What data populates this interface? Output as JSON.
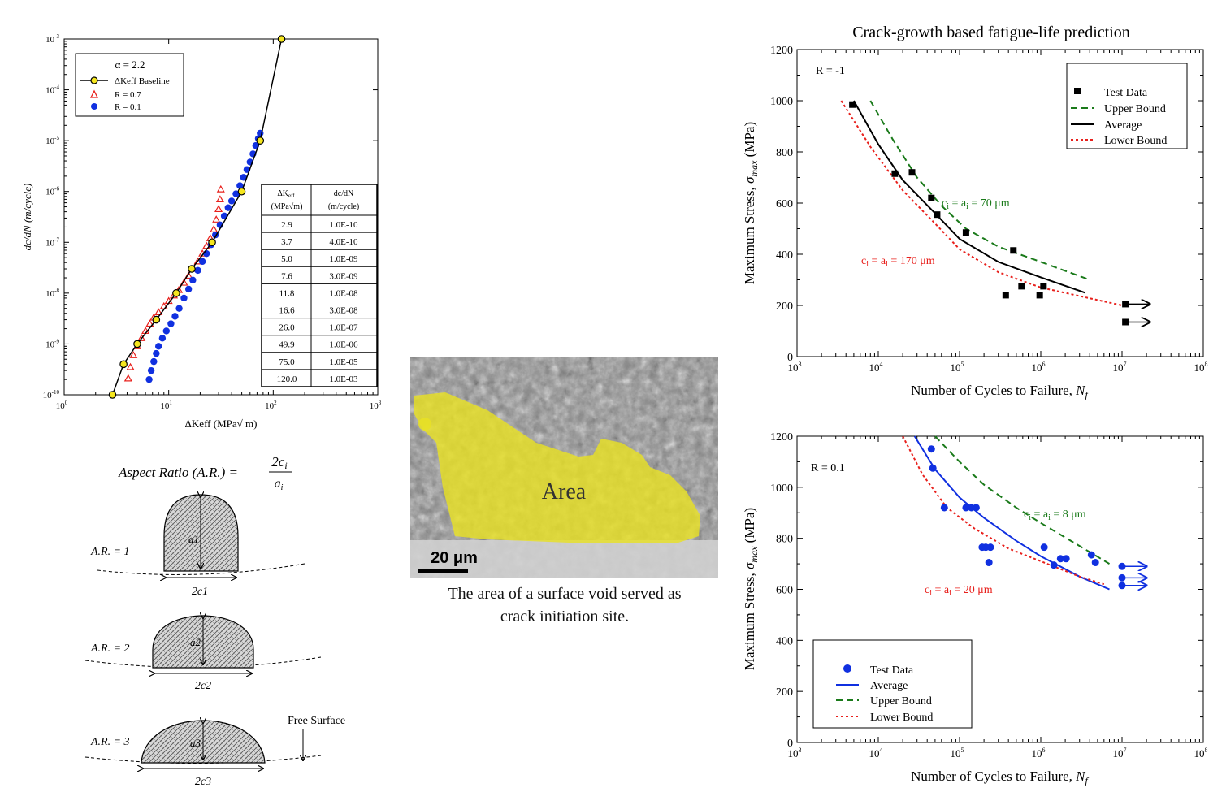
{
  "chart_data": [
    {
      "type": "line",
      "id": "crack_growth",
      "xlabel": "ΔKeff (MPa√ m)",
      "ylabel": "dc/dN (m/cycle)",
      "xscale": "log",
      "yscale": "log",
      "xlim": [
        1,
        1000
      ],
      "ylim": [
        1e-10,
        0.001
      ],
      "xticks": [
        "10^0",
        "10^1",
        "10^2",
        "10^3"
      ],
      "yticks": [
        "10^-10",
        "10^-9",
        "10^-8",
        "10^-7",
        "10^-6",
        "10^-5",
        "10^-4",
        "10^-3"
      ],
      "legend": {
        "title": "α = 2.2",
        "entries": [
          "ΔKeff Baseline",
          "R = 0.7",
          "R = 0.1"
        ],
        "placement": "top-left"
      },
      "series": [
        {
          "name": "ΔKeff Baseline",
          "color": "#000000",
          "marker": "circle-yellow",
          "points": [
            [
              2.9,
              1e-10
            ],
            [
              3.7,
              4e-10
            ],
            [
              5.0,
              1e-09
            ],
            [
              7.6,
              3e-09
            ],
            [
              11.8,
              1e-08
            ],
            [
              16.6,
              3e-08
            ],
            [
              26.0,
              1e-07
            ],
            [
              49.9,
              1e-06
            ],
            [
              75.0,
              1e-05
            ],
            [
              120.0,
              0.001
            ]
          ]
        },
        {
          "name": "R = 0.7",
          "color": "#e8201c",
          "marker": "triangle-open",
          "points": [
            [
              4.1,
              2.1e-10
            ],
            [
              4.3,
              3.5e-10
            ],
            [
              4.6,
              6e-10
            ],
            [
              5.0,
              9e-10
            ],
            [
              5.5,
              1.3e-09
            ],
            [
              6.0,
              1.8e-09
            ],
            [
              6.6,
              2.5e-09
            ],
            [
              7.2,
              3.3e-09
            ],
            [
              8.0,
              4.2e-09
            ],
            [
              9.0,
              5.5e-09
            ],
            [
              10.0,
              7e-09
            ],
            [
              11.2,
              9e-09
            ],
            [
              12.5,
              1.15e-08
            ],
            [
              14.0,
              1.6e-08
            ],
            [
              15.5,
              2.2e-08
            ],
            [
              17.0,
              3e-08
            ],
            [
              19.0,
              4.2e-08
            ],
            [
              21.0,
              6e-08
            ],
            [
              23.0,
              8.5e-08
            ],
            [
              25.0,
              1.2e-07
            ],
            [
              27.0,
              1.8e-07
            ],
            [
              28.5,
              2.8e-07
            ],
            [
              30.0,
              4.5e-07
            ],
            [
              31.0,
              7e-07
            ],
            [
              31.5,
              1.1e-06
            ]
          ]
        },
        {
          "name": "R = 0.1",
          "color": "#1030e0",
          "marker": "circle-filled",
          "points": [
            [
              6.5,
              2e-10
            ],
            [
              6.8,
              3e-10
            ],
            [
              7.2,
              4.5e-10
            ],
            [
              7.6,
              6.5e-10
            ],
            [
              8.0,
              9e-10
            ],
            [
              8.7,
              1.3e-09
            ],
            [
              9.5,
              1.8e-09
            ],
            [
              10.5,
              2.5e-09
            ],
            [
              11.5,
              3.5e-09
            ],
            [
              12.6,
              5e-09
            ],
            [
              14.0,
              8e-09
            ],
            [
              15.5,
              1.2e-08
            ],
            [
              17.0,
              1.8e-08
            ],
            [
              19.0,
              2.8e-08
            ],
            [
              21.0,
              4.2e-08
            ],
            [
              23.0,
              6e-08
            ],
            [
              25.5,
              9e-08
            ],
            [
              28.0,
              1.4e-07
            ],
            [
              31.0,
              2.2e-07
            ],
            [
              34.0,
              3.3e-07
            ],
            [
              37.0,
              4.8e-07
            ],
            [
              40.0,
              6.5e-07
            ],
            [
              44.0,
              9e-07
            ],
            [
              48.0,
              1.3e-06
            ],
            [
              52.0,
              1.9e-06
            ],
            [
              56.0,
              2.7e-06
            ],
            [
              60.0,
              3.8e-06
            ],
            [
              64.0,
              5.5e-06
            ],
            [
              68.0,
              8e-06
            ],
            [
              72.0,
              1.1e-05
            ],
            [
              75.0,
              1.4e-05
            ]
          ]
        }
      ],
      "table": {
        "headers": [
          "ΔKeff (MPa√m)",
          "dc/dN (m/cycle)"
        ],
        "rows": [
          [
            "2.9",
            "1.0E-10"
          ],
          [
            "3.7",
            "4.0E-10"
          ],
          [
            "5.0",
            "1.0E-09"
          ],
          [
            "7.6",
            "3.0E-09"
          ],
          [
            "11.8",
            "1.0E-08"
          ],
          [
            "16.6",
            "3.0E-08"
          ],
          [
            "26.0",
            "1.0E-07"
          ],
          [
            "49.9",
            "1.0E-06"
          ],
          [
            "75.0",
            "1.0E-05"
          ],
          [
            "120.0",
            "1.0E-03"
          ]
        ]
      }
    },
    {
      "type": "scatter",
      "id": "sn_r_minus1",
      "title": "Crack-growth based fatigue-life prediction",
      "xlabel": "Number of Cycles to Failure, Nf",
      "ylabel": "Maximum Stress, σmax (MPa)",
      "xscale": "log",
      "xlim": [
        1000,
        100000000
      ],
      "ylim": [
        0,
        1200
      ],
      "annotation": "R = -1",
      "legend": {
        "entries": [
          "Test Data",
          "Upper Bound",
          "Average",
          "Lower Bound"
        ],
        "placement": "top-right"
      },
      "curve_labels": [
        "ci = ai = 70 μm",
        "ci = ai = 170 μm"
      ],
      "series": [
        {
          "name": "Test Data",
          "color": "#000000",
          "marker": "square",
          "points": [
            [
              4800,
              985
            ],
            [
              16000,
              715
            ],
            [
              26000,
              720
            ],
            [
              45000,
              620
            ],
            [
              53000,
              555
            ],
            [
              120000,
              485
            ],
            [
              370000,
              240
            ],
            [
              460000,
              415
            ],
            [
              580000,
              275
            ],
            [
              970000,
              240
            ],
            [
              1080000,
              275
            ],
            [
              11000000,
              205
            ],
            [
              11000000,
              135
            ]
          ]
        },
        {
          "name": "Upper Bound",
          "color": "#1a7a1a",
          "dash": "8,5",
          "points": [
            [
              8000,
              1000
            ],
            [
              15000,
              850
            ],
            [
              30000,
              700
            ],
            [
              60000,
              590
            ],
            [
              120000,
              500
            ],
            [
              300000,
              430
            ],
            [
              1000000,
              370
            ],
            [
              4000000,
              300
            ]
          ]
        },
        {
          "name": "Average",
          "color": "#000000",
          "points": [
            [
              5000,
              1000
            ],
            [
              10000,
              830
            ],
            [
              20000,
              690
            ],
            [
              50000,
              560
            ],
            [
              100000,
              460
            ],
            [
              300000,
              370
            ],
            [
              1000000,
              310
            ],
            [
              3500000,
              250
            ]
          ]
        },
        {
          "name": "Lower Bound",
          "color": "#e8201c",
          "dash": "3,3",
          "points": [
            [
              3500,
              1000
            ],
            [
              8000,
              820
            ],
            [
              20000,
              650
            ],
            [
              50000,
              520
            ],
            [
              100000,
              420
            ],
            [
              300000,
              330
            ],
            [
              1000000,
              270
            ],
            [
              10000000,
              200
            ]
          ]
        }
      ],
      "runouts": [
        [
          11000000,
          205
        ],
        [
          11000000,
          135
        ]
      ]
    },
    {
      "type": "scatter",
      "id": "sn_r_01",
      "xlabel": "Number of Cycles to Failure, Nf",
      "ylabel": "Maximum Stress, σmax (MPa)",
      "xscale": "log",
      "xlim": [
        1000,
        100000000
      ],
      "ylim": [
        0,
        1200
      ],
      "annotation": "R = 0.1",
      "legend": {
        "entries": [
          "Test Data",
          "Average",
          "Upper Bound",
          "Lower Bound"
        ],
        "placement": "bottom-left"
      },
      "curve_labels": [
        "ci = ai = 8 μm",
        "ci = ai = 20 μm"
      ],
      "series": [
        {
          "name": "Test Data",
          "color": "#1030e0",
          "marker": "circle",
          "points": [
            [
              45000,
              1150
            ],
            [
              47000,
              1075
            ],
            [
              65000,
              920
            ],
            [
              120000,
              920
            ],
            [
              140000,
              920
            ],
            [
              160000,
              920
            ],
            [
              190000,
              765
            ],
            [
              210000,
              765
            ],
            [
              230000,
              705
            ],
            [
              240000,
              765
            ],
            [
              1100000,
              765
            ],
            [
              1450000,
              695
            ],
            [
              1750000,
              720
            ],
            [
              2050000,
              720
            ],
            [
              4200000,
              735
            ],
            [
              4700000,
              705
            ],
            [
              10000000,
              690
            ],
            [
              10000000,
              645
            ],
            [
              10000000,
              615
            ]
          ]
        },
        {
          "name": "Average",
          "color": "#1030e0",
          "points": [
            [
              28000,
              1200
            ],
            [
              50000,
              1070
            ],
            [
              100000,
              960
            ],
            [
              200000,
              880
            ],
            [
              500000,
              790
            ],
            [
              1000000,
              730
            ],
            [
              3000000,
              650
            ],
            [
              7000000,
              600
            ]
          ]
        },
        {
          "name": "Upper Bound",
          "color": "#1a7a1a",
          "dash": "8,5",
          "points": [
            [
              50000,
              1200
            ],
            [
              100000,
              1100
            ],
            [
              200000,
              1010
            ],
            [
              500000,
              920
            ],
            [
              1000000,
              860
            ],
            [
              3000000,
              770
            ],
            [
              7000000,
              700
            ]
          ]
        },
        {
          "name": "Lower Bound",
          "color": "#e8201c",
          "dash": "3,3",
          "points": [
            [
              20000,
              1200
            ],
            [
              35000,
              1050
            ],
            [
              70000,
              920
            ],
            [
              150000,
              840
            ],
            [
              400000,
              760
            ],
            [
              1000000,
              710
            ],
            [
              3000000,
              650
            ],
            [
              6000000,
              620
            ]
          ]
        }
      ],
      "runouts": [
        [
          10000000,
          690
        ],
        [
          10000000,
          645
        ],
        [
          10000000,
          615
        ]
      ]
    }
  ],
  "aspect_ratio": {
    "formula": "Aspect Ratio (A.R.) = 2ci / ai",
    "items": [
      {
        "label": "A.R. = 1",
        "depth": "a1",
        "width": "2c1"
      },
      {
        "label": "A.R. = 2",
        "depth": "a2",
        "width": "2c2"
      },
      {
        "label": "A.R. = 3",
        "depth": "a3",
        "width": "2c3"
      }
    ],
    "free_surface": "Free Surface"
  },
  "micrograph": {
    "area_label": "Area",
    "scale_bar": "20 μm",
    "caption_line1": "The area of a surface void served as",
    "caption_line2": "crack initiation site."
  },
  "colors": {
    "baseline_fill": "#f5e61e",
    "r07": "#e8201c",
    "r01": "#1030e0",
    "upper": "#1a7a1a",
    "lower": "#e8201c",
    "area_overlay": "#e8e024"
  }
}
